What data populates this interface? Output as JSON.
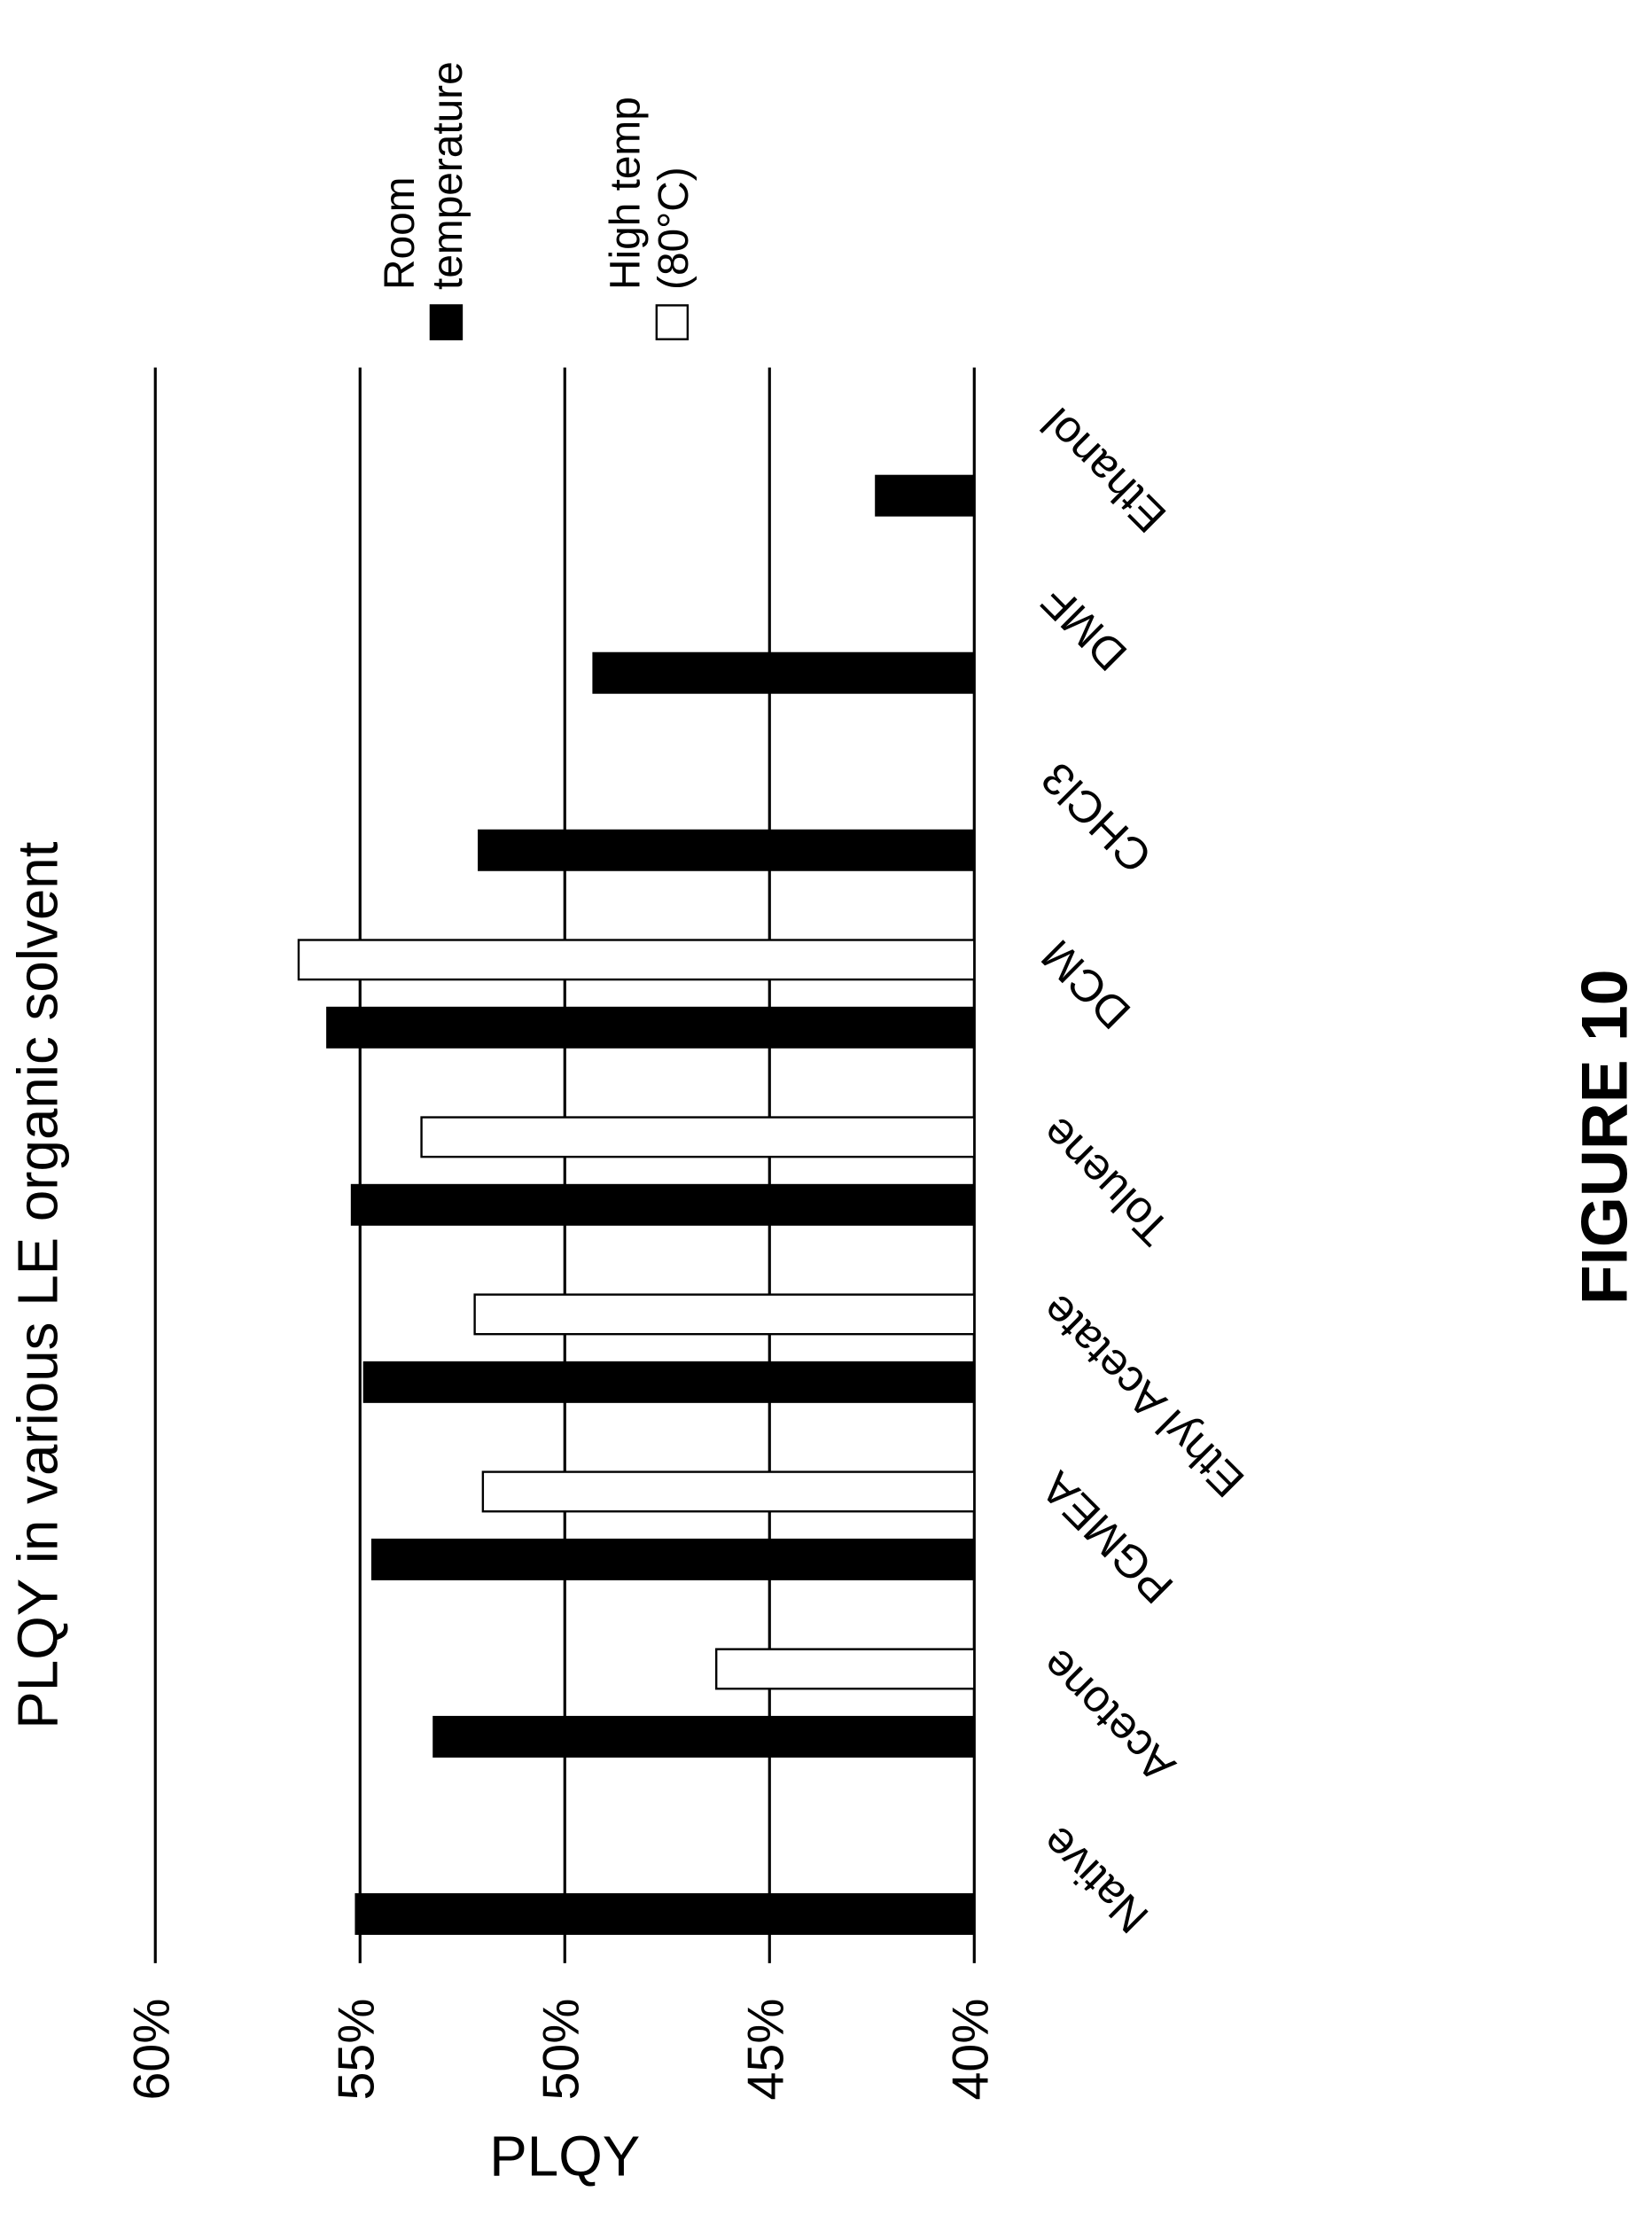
{
  "chart_data": {
    "type": "bar",
    "title": "PLQY in various LE organic solvent",
    "ylabel": "PLQY",
    "caption": "FIGURE 10",
    "categories": [
      "Native",
      "Acetone",
      "PGMEA",
      "Ethyl Acetate",
      "Toluene",
      "DCM",
      "CHCl3",
      "DMF",
      "Ethanol"
    ],
    "series": [
      {
        "name": "Room temperature",
        "color": "#000000",
        "values": [
          55.1,
          53.2,
          54.7,
          54.9,
          55.2,
          55.8,
          52.1,
          49.3,
          42.4
        ]
      },
      {
        "name": "High temp (80°C)",
        "color": "#ffffff",
        "values": [
          null,
          46.3,
          52.0,
          52.2,
          53.5,
          56.5,
          null,
          null,
          null
        ]
      }
    ],
    "ylim": [
      40,
      60
    ],
    "yticks": [
      {
        "value": 40,
        "label": "40%"
      },
      {
        "value": 45,
        "label": "45%"
      },
      {
        "value": 50,
        "label": "50%"
      },
      {
        "value": 55,
        "label": "55%"
      },
      {
        "value": 60,
        "label": "60%"
      }
    ],
    "grid": true
  }
}
